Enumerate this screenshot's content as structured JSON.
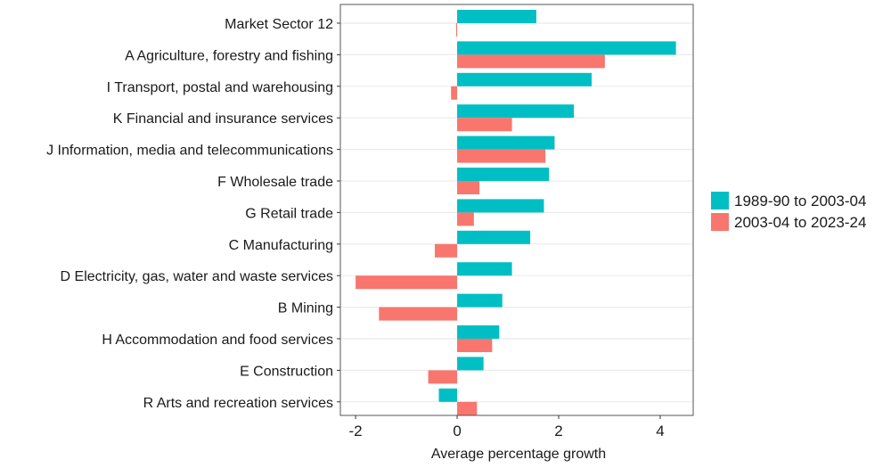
{
  "chart_data": {
    "type": "bar",
    "orientation": "horizontal",
    "title": "",
    "xlabel": "Average percentage growth",
    "ylabel": "",
    "xlim": [
      -2.3,
      4.65
    ],
    "xticks": [
      -2,
      0,
      2,
      4
    ],
    "grid": true,
    "legend_position": "right",
    "categories": [
      "Market Sector 12",
      "A Agriculture, forestry and fishing",
      "I Transport, postal and warehousing",
      "K Financial and insurance services",
      "J Information, media and telecommunications",
      "F Wholesale trade",
      "G Retail trade",
      "C Manufacturing",
      "D Electricity, gas, water and waste services",
      "B Mining",
      "H Accommodation and food services",
      "E Construction",
      "R Arts and recreation services"
    ],
    "series": [
      {
        "name": "1989-90 to 2003-04",
        "color": "#00BFC4",
        "values": [
          1.56,
          4.31,
          2.65,
          2.3,
          1.92,
          1.81,
          1.71,
          1.44,
          1.08,
          0.89,
          0.83,
          0.52,
          -0.36
        ]
      },
      {
        "name": "2003-04 to 2023-24",
        "color": "#F8766D",
        "values": [
          -0.02,
          2.91,
          -0.12,
          1.08,
          1.74,
          0.44,
          0.33,
          -0.44,
          -2.0,
          -1.54,
          0.69,
          -0.57,
          0.39
        ]
      }
    ]
  }
}
